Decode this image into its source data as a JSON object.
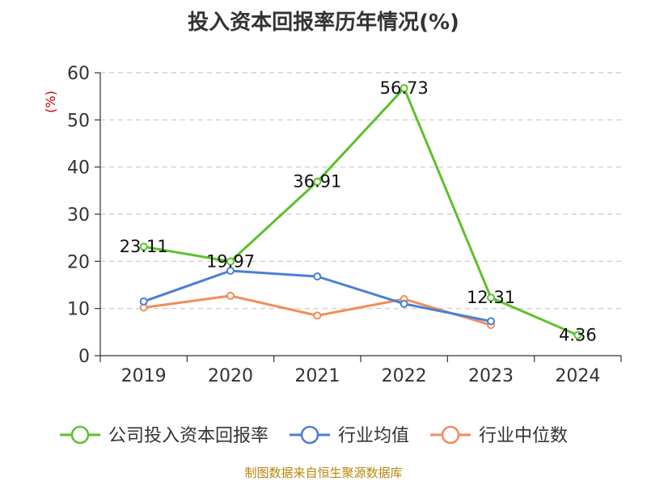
{
  "chart_data": {
    "type": "line",
    "title": "投入资本回报率历年情况(%)",
    "ylabel": "(%)",
    "xlabel": "",
    "categories": [
      "2019",
      "2020",
      "2021",
      "2022",
      "2023",
      "2024"
    ],
    "ylim": [
      0,
      60
    ],
    "yticks": [
      0,
      10,
      20,
      30,
      40,
      50,
      60
    ],
    "grid": true,
    "legend_position": "bottom",
    "series": [
      {
        "name": "公司投入资本回报率",
        "color": "#5cc12a",
        "values": [
          23.11,
          19.97,
          36.91,
          56.73,
          12.31,
          4.36
        ],
        "labels": [
          "23.11",
          "19.97",
          "36.91",
          "56.73",
          "12.31",
          "4.36"
        ]
      },
      {
        "name": "行业均值",
        "color": "#4b7fd6",
        "values": [
          11.5,
          18.0,
          16.8,
          11.0,
          7.3,
          null
        ]
      },
      {
        "name": "行业中位数",
        "color": "#f28c5a",
        "values": [
          10.2,
          12.7,
          8.5,
          12.0,
          6.5,
          null
        ]
      }
    ]
  },
  "footer": {
    "source": "制图数据来自恒生聚源数据库"
  }
}
